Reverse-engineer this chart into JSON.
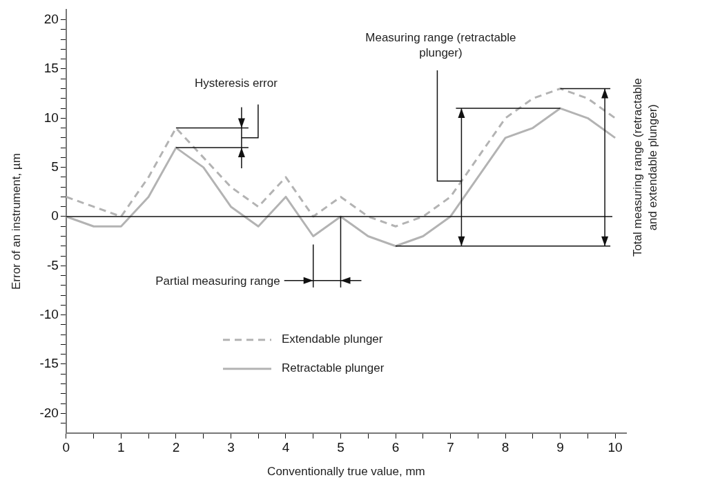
{
  "chart_data": {
    "type": "line",
    "xlabel": "Conventionally true value, mm",
    "ylabel": "Error of an instrument, µm",
    "x": [
      0,
      0.5,
      1,
      1.5,
      2,
      2.5,
      3,
      3.5,
      4,
      4.5,
      5,
      5.5,
      6,
      6.5,
      7,
      7.5,
      8,
      8.5,
      9,
      9.5,
      10
    ],
    "series": [
      {
        "name": "Extendable plunger",
        "color": "#b3b3b3",
        "line_style": "dashed",
        "values": [
          2,
          1,
          0,
          4,
          9,
          6,
          3,
          1,
          4,
          0,
          2,
          0,
          -1,
          0,
          2,
          6,
          10,
          12,
          13,
          12,
          10
        ]
      },
      {
        "name": "Retractable plunger",
        "color": "#b3b3b3",
        "line_style": "solid",
        "values": [
          0,
          -1,
          -1,
          2,
          7,
          5,
          1,
          -1,
          2,
          -2,
          0,
          -2,
          -3,
          -2,
          0,
          4,
          8,
          9,
          11,
          10,
          8
        ]
      }
    ],
    "xlim": [
      0,
      10.2
    ],
    "ylim": [
      -22,
      21
    ],
    "xticks": [
      0,
      {
        "value": 0.5,
        "label": null
      },
      1,
      {
        "value": 1.5,
        "label": null
      },
      2,
      {
        "value": 2.5,
        "label": null
      },
      3,
      {
        "value": 3.5,
        "label": null
      },
      4,
      {
        "value": 4.5,
        "label": null
      },
      5,
      {
        "value": 5.5,
        "label": null
      },
      6,
      {
        "value": 6.5,
        "label": null
      },
      7,
      {
        "value": 7.5,
        "label": null
      },
      8,
      {
        "value": 8.5,
        "label": null
      },
      9,
      {
        "value": 9.5,
        "label": null
      },
      10
    ],
    "yticks": [
      {
        "value": -21,
        "label": null
      },
      -20,
      {
        "value": -19,
        "label": null
      },
      {
        "value": -18,
        "label": null
      },
      {
        "value": -17,
        "label": null
      },
      {
        "value": -16,
        "label": null
      },
      -15,
      {
        "value": -14,
        "label": null
      },
      {
        "value": -13,
        "label": null
      },
      {
        "value": -12,
        "label": null
      },
      {
        "value": -11,
        "label": null
      },
      -10,
      {
        "value": -9,
        "label": null
      },
      {
        "value": -8,
        "label": null
      },
      {
        "value": -7,
        "label": null
      },
      {
        "value": -6,
        "label": null
      },
      -5,
      {
        "value": -4,
        "label": null
      },
      {
        "value": -3,
        "label": null
      },
      {
        "value": -2,
        "label": null
      },
      {
        "value": -1,
        "label": null
      },
      0,
      {
        "value": 1,
        "label": null
      },
      {
        "value": 2,
        "label": null
      },
      {
        "value": 3,
        "label": null
      },
      {
        "value": 4,
        "label": null
      },
      5,
      {
        "value": 6,
        "label": null
      },
      {
        "value": 7,
        "label": null
      },
      {
        "value": 8,
        "label": null
      },
      {
        "value": 9,
        "label": null
      },
      10,
      {
        "value": 11,
        "label": null
      },
      {
        "value": 12,
        "label": null
      },
      {
        "value": 13,
        "label": null
      },
      {
        "value": 14,
        "label": null
      },
      15,
      {
        "value": 16,
        "label": null
      },
      {
        "value": 17,
        "label": null
      },
      {
        "value": 18,
        "label": null
      },
      {
        "value": 19,
        "label": null
      },
      20
    ],
    "ref_lines": [
      {
        "axis": "y",
        "value": 0
      }
    ],
    "annotations": [
      "Hysteresis error",
      "Partial measuring range",
      {
        "text": "Measuring range (retractable plunger)",
        "x": 7.2,
        "y": 3.6
      },
      "Total measuring range (retractable and extendable plunger)"
    ],
    "grid": false,
    "legend": "bottom",
    "marker": "none"
  }
}
